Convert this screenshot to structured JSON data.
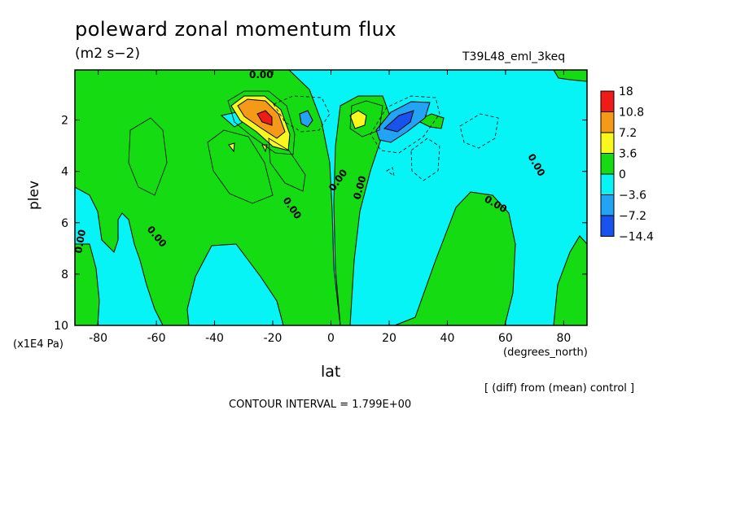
{
  "chart_data": {
    "type": "heatmap",
    "title": "poleward zonal momentum flux",
    "units": "(m2 s−2)",
    "run_label": "T39L48_eml_3keq",
    "xlabel": "lat",
    "x_units": "(degrees_north)",
    "ylabel": "plev",
    "y_units": "(x1E4 Pa)",
    "xlim": [
      -88,
      88
    ],
    "ylim": [
      10,
      0.05
    ],
    "x_ticks": [
      -80,
      -60,
      -40,
      -20,
      0,
      20,
      40,
      60,
      80
    ],
    "y_ticks": [
      2,
      4,
      6,
      8,
      10
    ],
    "colorbar": {
      "levels": [
        "18",
        "10.8",
        "7.2",
        "3.6",
        "0",
        "−3.6",
        "−7.2",
        "−14.4"
      ],
      "colors": [
        "#ef1b16",
        "#f59a18",
        "#f8f71e",
        "#14db12",
        "#06f4f6",
        "#23a3f4",
        "#1a52ee"
      ]
    },
    "contour_labels": [
      "0.00",
      "0.00",
      "0.00",
      "0.00",
      "0.00",
      "0.00",
      "0.00",
      "0.00"
    ],
    "contour_interval_text": "CONTOUR INTERVAL = 1.799E+00",
    "note": "[ (diff) from (mean) control ]",
    "features": [
      {
        "lat": -22,
        "plev": 1.9,
        "value": 16,
        "kind": "max"
      },
      {
        "lat": 22,
        "plev": 2.1,
        "value": -12,
        "kind": "min"
      },
      {
        "lat": 10,
        "plev": 2.0,
        "value": 5,
        "kind": "max"
      },
      {
        "lat": -8,
        "plev": 2.0,
        "value": -5,
        "kind": "min"
      }
    ]
  }
}
